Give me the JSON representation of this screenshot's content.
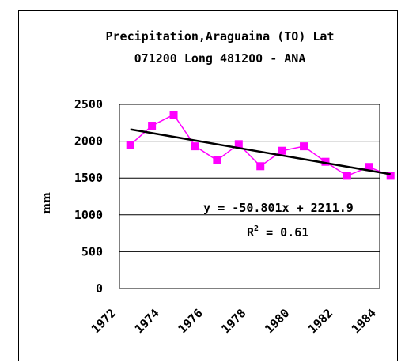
{
  "chart_data": {
    "type": "line",
    "title_line1": "Precipitation,Araguaina (TO) Lat",
    "title_line2": "071200 Long 481200 - ANA",
    "xlabel": "",
    "ylabel": "mm",
    "ylim": [
      0,
      2500
    ],
    "yticks": [
      0,
      500,
      1000,
      1500,
      2000,
      2500
    ],
    "xlim": [
      1972.5,
      1984.5
    ],
    "xticks": [
      1972,
      1974,
      1976,
      1978,
      1980,
      1982,
      1984
    ],
    "grid": "horizontal",
    "series": [
      {
        "color": "#ff00ff",
        "marker": "square",
        "x": [
          1973,
          1974,
          1975,
          1976,
          1977,
          1978,
          1979,
          1980,
          1981,
          1982,
          1983,
          1984,
          1985
        ],
        "values": [
          1950,
          2210,
          2360,
          1930,
          1740,
          1960,
          1660,
          1870,
          1930,
          1720,
          1530,
          1650,
          1530
        ]
      }
    ],
    "trendline": {
      "color": "#000000",
      "slope": -50.801,
      "intercept": 2211.9,
      "equation": "y = -50.801x + 2211.9",
      "r2_label": "R",
      "r2_sup": "2",
      "r2_value": " = 0.61"
    }
  }
}
